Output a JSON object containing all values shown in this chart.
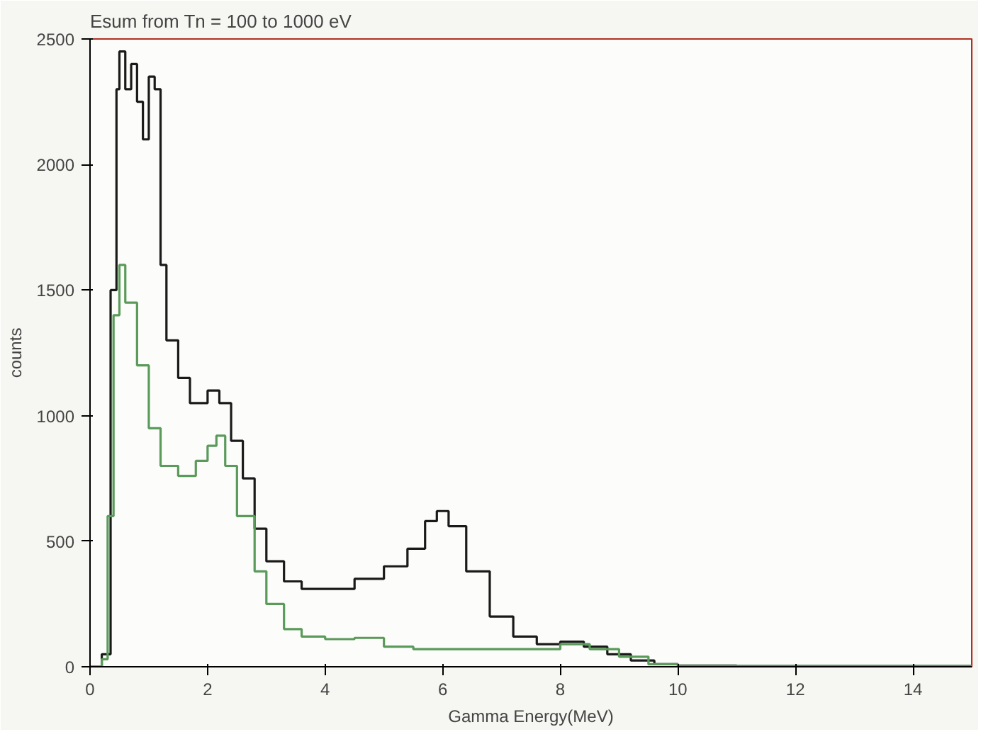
{
  "chart_data": {
    "type": "step",
    "title": "Esum from Tn = 100 to 1000 eV",
    "xlabel": "Gamma Energy(MeV)",
    "ylabel": "counts",
    "xlim": [
      0,
      15
    ],
    "ylim": [
      0,
      2500
    ],
    "xticks": [
      0,
      2,
      4,
      6,
      8,
      10,
      12,
      14
    ],
    "yticks": [
      0,
      500,
      1000,
      1500,
      2000,
      2500
    ],
    "grid": false,
    "series": [
      {
        "color": "#1a1a1a",
        "x": [
          0,
          0.2,
          0.35,
          0.45,
          0.5,
          0.6,
          0.7,
          0.8,
          0.9,
          1.0,
          1.1,
          1.2,
          1.3,
          1.5,
          1.7,
          2.0,
          2.2,
          2.4,
          2.6,
          2.8,
          3.0,
          3.3,
          3.6,
          4.0,
          4.5,
          5.0,
          5.4,
          5.7,
          5.9,
          6.1,
          6.4,
          6.8,
          7.2,
          7.6,
          8.0,
          8.4,
          8.8,
          9.2,
          9.6,
          10,
          11,
          15
        ],
        "values": [
          0,
          50,
          1500,
          2300,
          2450,
          2300,
          2400,
          2250,
          2100,
          2350,
          2300,
          1600,
          1300,
          1150,
          1050,
          1100,
          1050,
          900,
          750,
          550,
          420,
          340,
          310,
          310,
          350,
          400,
          470,
          580,
          620,
          560,
          380,
          200,
          120,
          90,
          100,
          80,
          50,
          25,
          10,
          5,
          3,
          2
        ]
      },
      {
        "color": "#5a9a5a",
        "x": [
          0,
          0.2,
          0.3,
          0.4,
          0.5,
          0.6,
          0.8,
          1.0,
          1.2,
          1.5,
          1.8,
          2.0,
          2.15,
          2.3,
          2.5,
          2.8,
          3.0,
          3.3,
          3.6,
          4.0,
          4.5,
          5.0,
          5.5,
          6.0,
          7.0,
          8.0,
          8.5,
          9.0,
          9.5,
          10,
          15
        ],
        "values": [
          0,
          30,
          600,
          1400,
          1600,
          1450,
          1200,
          950,
          800,
          760,
          820,
          880,
          920,
          800,
          600,
          380,
          250,
          150,
          120,
          110,
          115,
          80,
          70,
          70,
          70,
          90,
          70,
          40,
          10,
          3,
          0
        ]
      }
    ]
  }
}
